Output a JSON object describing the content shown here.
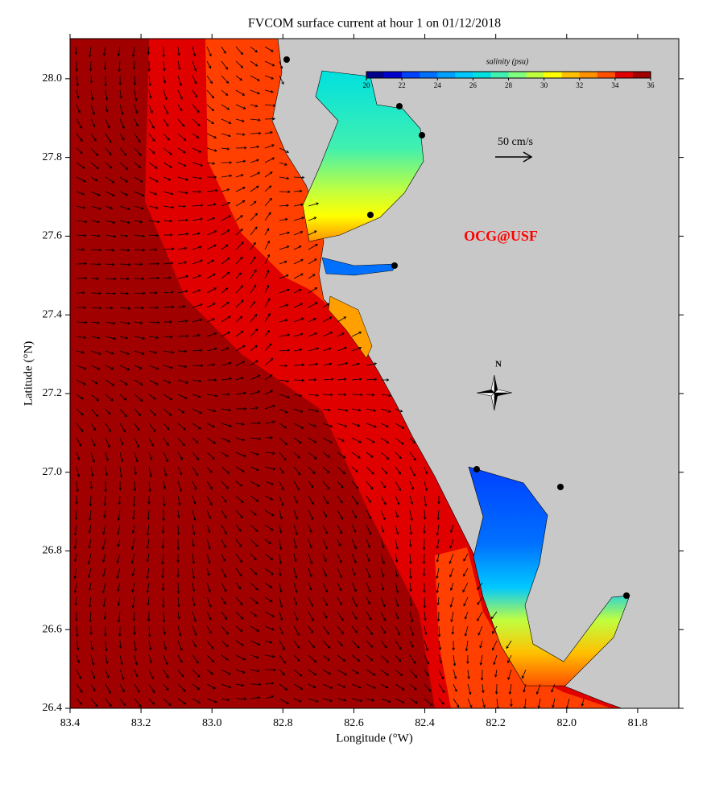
{
  "chart_data": {
    "type": "map",
    "title": "FVCOM surface current at hour 1 on 01/12/2018",
    "xlabel": "Longitude (°W)",
    "ylabel": "Latitude (°N)",
    "xlim": [
      83.4,
      81.684
    ],
    "ylim": [
      26.4,
      28.102
    ],
    "xticks": [
      83.4,
      83.2,
      {
        "value": 83,
        "label": "83.0"
      },
      82.8,
      82.6,
      82.4,
      82.2,
      {
        "value": 82,
        "label": "82.0"
      },
      81.8
    ],
    "yticks": [
      26.4,
      26.6,
      26.8,
      {
        "value": 27,
        "label": "27.0"
      },
      27.2,
      27.4,
      27.6,
      27.8,
      {
        "value": 28,
        "label": "28.0"
      }
    ],
    "colorbar": {
      "label": "salinity (psu)",
      "clim": [
        20,
        36
      ],
      "ticks": [
        20,
        22,
        24,
        26,
        28,
        30,
        32,
        34,
        36
      ],
      "colors": [
        "#00008b",
        "#0000cd",
        "#0040ff",
        "#0070ff",
        "#00a0ff",
        "#00c8ff",
        "#00e0e0",
        "#40f0b0",
        "#80ff80",
        "#c0ff40",
        "#ffff00",
        "#ffc000",
        "#ff9000",
        "#ff5000",
        "#e00000",
        "#a00000"
      ]
    },
    "annotations": {
      "scale_label": "50 cm/s",
      "credit": "OCG@USF",
      "compass": "N"
    }
  }
}
